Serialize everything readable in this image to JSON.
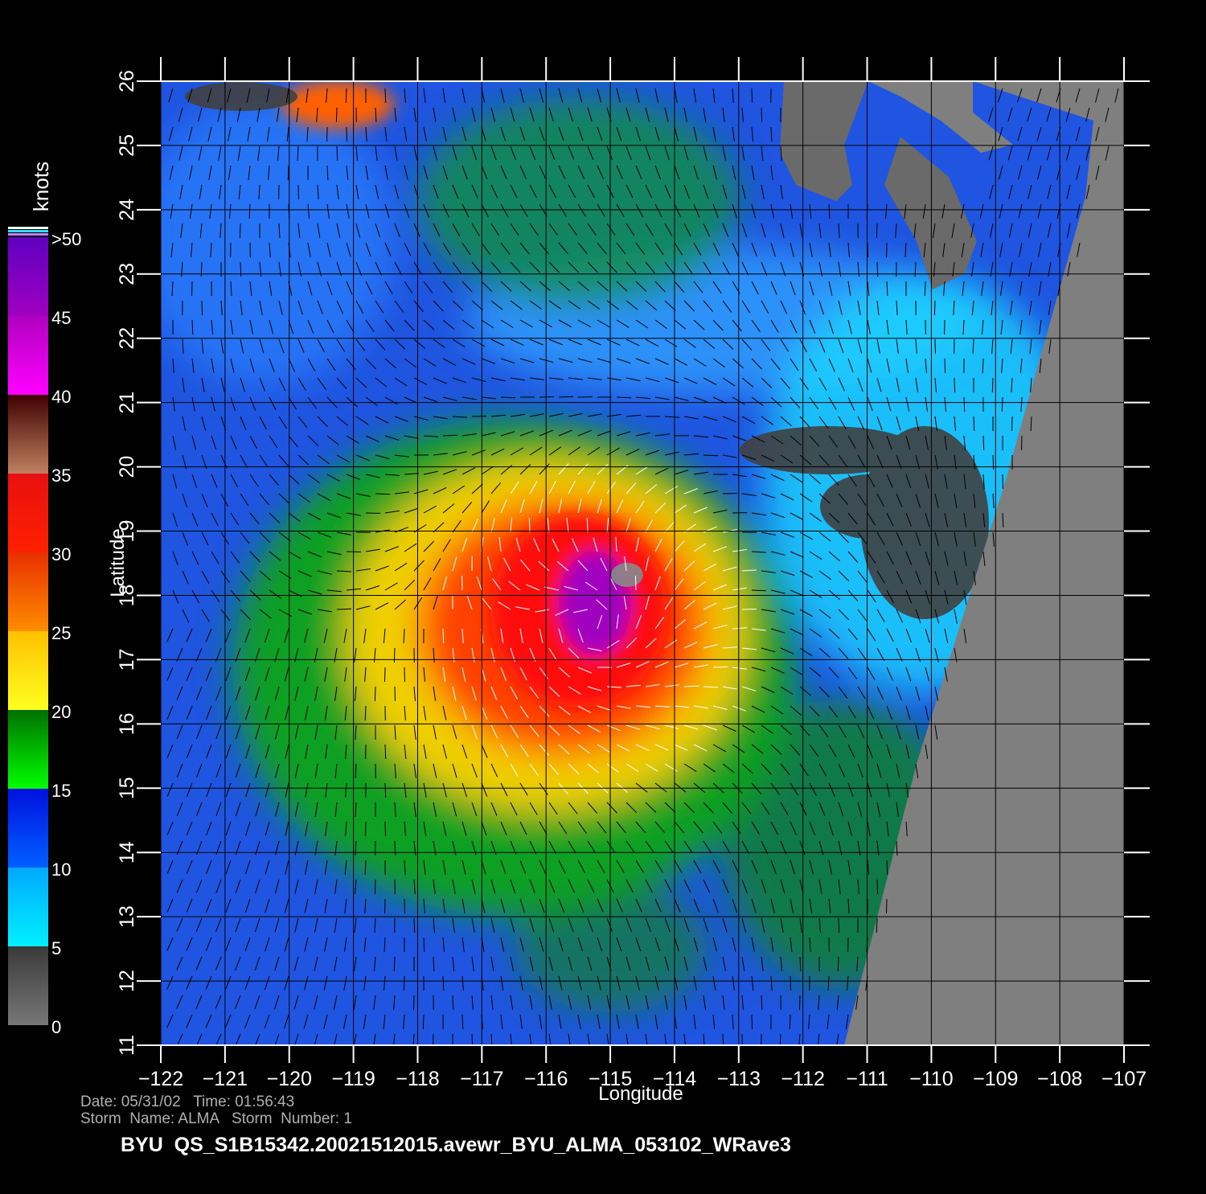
{
  "map": {
    "title": "BYU  QS_S1B15342.20021512015.avewr_BYU_ALMA_053102_WRave3",
    "date_line": "Date: 05/31/02   Time: 01:56:43",
    "storm_line": "Storm  Name: ALMA   Storm  Number: 1",
    "xlabel": "Longitude",
    "ylabel": "Latitude",
    "xlim": [
      -122,
      -107
    ],
    "ylim": [
      11,
      26
    ],
    "xticks": [
      {
        "value": -122,
        "label": "−122"
      },
      {
        "value": -121,
        "label": "−121"
      },
      {
        "value": -120,
        "label": "−120"
      },
      {
        "value": -119,
        "label": "−119"
      },
      {
        "value": -118,
        "label": "−118"
      },
      {
        "value": -117,
        "label": "−117"
      },
      {
        "value": -116,
        "label": "−116"
      },
      {
        "value": -115,
        "label": "−115"
      },
      {
        "value": -114,
        "label": "−114"
      },
      {
        "value": -113,
        "label": "−113"
      },
      {
        "value": -112,
        "label": "−112"
      },
      {
        "value": -111,
        "label": "−111"
      },
      {
        "value": -110,
        "label": "−110"
      },
      {
        "value": -109,
        "label": "−109"
      },
      {
        "value": -108,
        "label": "−108"
      },
      {
        "value": -107,
        "label": "−107"
      }
    ],
    "yticks": [
      11,
      12,
      13,
      14,
      15,
      16,
      17,
      18,
      19,
      20,
      21,
      22,
      23,
      24,
      25,
      26
    ],
    "grid": true,
    "colorbar": {
      "label": "knots",
      "lim": [
        0,
        50
      ],
      "ticks": [
        0,
        5,
        10,
        15,
        20,
        25,
        30,
        35,
        40,
        45,
        {
          "value": 50,
          "label": ">50"
        }
      ],
      "colors": [
        [
          "#777777",
          "#3a3a3a"
        ],
        [
          "#00f0ff",
          "#00a8ff"
        ],
        [
          "#0060ff",
          "#0010e0"
        ],
        [
          "#00ff00",
          "#007000"
        ],
        [
          "#ffff20",
          "#ffc000"
        ],
        [
          "#ff8c00",
          "#e83000"
        ],
        [
          "#ff2000",
          "#e81010"
        ],
        [
          "#c08060",
          "#400000"
        ],
        [
          "#ff00ff",
          "#b000c0"
        ],
        [
          "#a000c0",
          "#6000c0"
        ]
      ]
    }
  }
}
